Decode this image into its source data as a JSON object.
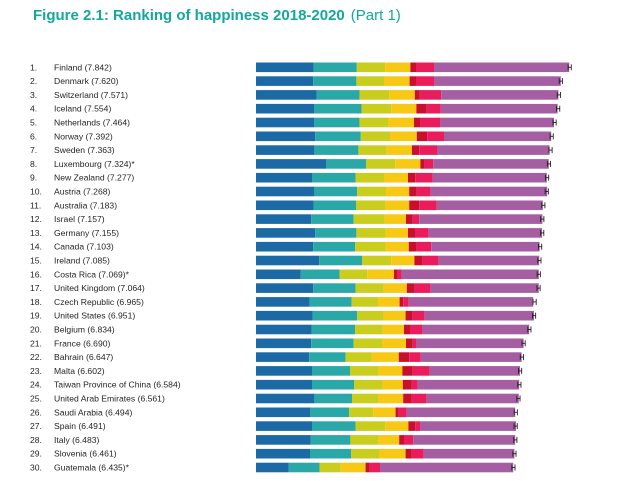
{
  "figure": {
    "title": "Figure 2.1: Ranking of happiness 2018-2020",
    "part": "(Part 1)"
  },
  "colors": {
    "title": "#13a89e",
    "segments": [
      "#1b6aa5",
      "#2aa8a8",
      "#c9cd1e",
      "#f8c914",
      "#c8102e",
      "#ea1c5c",
      "#a55ea2"
    ],
    "whisker": "#231f20"
  },
  "chart_data": {
    "type": "bar",
    "orientation": "horizontal",
    "stacked": true,
    "title": "Figure 2.1: Ranking of happiness 2018-2020",
    "subtitle": "(Part 1)",
    "ranks": [
      "1.",
      "2.",
      "3.",
      "4.",
      "5.",
      "6.",
      "7.",
      "8.",
      "9.",
      "10.",
      "11.",
      "12.",
      "13.",
      "14.",
      "15.",
      "16.",
      "17.",
      "18.",
      "19.",
      "20.",
      "21.",
      "22.",
      "23.",
      "24.",
      "25.",
      "26.",
      "27.",
      "28.",
      "29.",
      "30."
    ],
    "categories": [
      "Finland (7.842)",
      "Denmark (7.620)",
      "Switzerland (7.571)",
      "Iceland (7.554)",
      "Netherlands (7.464)",
      "Norway (7.392)",
      "Sweden (7.363)",
      "Luxembourg (7.324)*",
      "New Zealand (7.277)",
      "Austria (7.268)",
      "Australia (7.183)",
      "Israel (7.157)",
      "Germany (7.155)",
      "Canada (7.103)",
      "Ireland (7.085)",
      "Costa Rica (7.069)*",
      "United Kingdom (7.064)",
      "Czech Republic (6.965)",
      "United States (6.951)",
      "Belgium (6.834)",
      "France (6.690)",
      "Bahrain (6.647)",
      "Malta (6.602)",
      "Taiwan Province of China (6.584)",
      "United Arab Emirates (6.561)",
      "Saudi Arabia (6.494)",
      "Spain (6.491)",
      "Italy (6.483)",
      "Slovenia (6.461)",
      "Guatemala (6.435)*"
    ],
    "totals": [
      7.842,
      7.62,
      7.571,
      7.554,
      7.464,
      7.392,
      7.363,
      7.324,
      7.277,
      7.268,
      7.183,
      7.157,
      7.155,
      7.103,
      7.085,
      7.069,
      7.064,
      6.965,
      6.951,
      6.834,
      6.69,
      6.647,
      6.602,
      6.584,
      6.561,
      6.494,
      6.491,
      6.483,
      6.461,
      6.435
    ],
    "segments": [
      [
        1.44,
        1.08,
        0.71,
        0.63,
        0.14,
        0.45,
        3.38
      ],
      [
        1.43,
        1.08,
        0.69,
        0.64,
        0.16,
        0.46,
        3.16
      ],
      [
        1.52,
        1.07,
        0.74,
        0.64,
        0.12,
        0.54,
        2.93
      ],
      [
        1.45,
        1.19,
        0.74,
        0.63,
        0.26,
        0.35,
        2.92
      ],
      [
        1.45,
        1.14,
        0.71,
        0.65,
        0.17,
        0.49,
        2.84
      ],
      [
        1.48,
        1.14,
        0.73,
        0.67,
        0.26,
        0.42,
        2.68
      ],
      [
        1.46,
        1.1,
        0.71,
        0.63,
        0.18,
        0.46,
        2.8
      ],
      [
        1.75,
        1.0,
        0.73,
        0.63,
        0.1,
        0.22,
        2.89
      ],
      [
        1.4,
        1.09,
        0.72,
        0.59,
        0.18,
        0.44,
        2.85
      ],
      [
        1.46,
        1.07,
        0.72,
        0.58,
        0.19,
        0.35,
        2.91
      ],
      [
        1.44,
        1.06,
        0.74,
        0.59,
        0.25,
        0.44,
        2.65
      ],
      [
        1.38,
        1.06,
        0.78,
        0.53,
        0.17,
        0.16,
        3.08
      ],
      [
        1.48,
        1.03,
        0.73,
        0.56,
        0.19,
        0.32,
        2.84
      ],
      [
        1.43,
        1.05,
        0.76,
        0.58,
        0.2,
        0.36,
        2.71
      ],
      [
        1.58,
        1.07,
        0.73,
        0.58,
        0.2,
        0.4,
        2.52
      ],
      [
        1.12,
        0.97,
        0.69,
        0.67,
        0.09,
        0.1,
        3.43
      ],
      [
        1.43,
        1.06,
        0.7,
        0.58,
        0.18,
        0.41,
        2.71
      ],
      [
        1.34,
        1.05,
        0.66,
        0.54,
        0.09,
        0.14,
        3.11
      ],
      [
        1.42,
        1.11,
        0.66,
        0.55,
        0.17,
        0.3,
        2.74
      ],
      [
        1.39,
        1.09,
        0.69,
        0.53,
        0.15,
        0.31,
        2.67
      ],
      [
        1.38,
        1.06,
        0.72,
        0.59,
        0.16,
        0.1,
        2.68
      ],
      [
        1.33,
        0.91,
        0.65,
        0.68,
        0.26,
        0.29,
        2.52
      ],
      [
        1.4,
        0.95,
        0.72,
        0.59,
        0.25,
        0.43,
        2.26
      ],
      [
        1.4,
        1.05,
        0.71,
        0.51,
        0.22,
        0.15,
        2.54
      ],
      [
        1.46,
        0.94,
        0.66,
        0.62,
        0.21,
        0.37,
        2.31
      ],
      [
        1.35,
        0.98,
        0.6,
        0.56,
        0.07,
        0.21,
        2.71
      ],
      [
        1.4,
        1.09,
        0.74,
        0.58,
        0.17,
        0.13,
        2.39
      ],
      [
        1.37,
        0.99,
        0.7,
        0.52,
        0.12,
        0.23,
        2.55
      ],
      [
        1.35,
        1.03,
        0.71,
        0.65,
        0.15,
        0.3,
        2.27
      ],
      [
        0.82,
        0.77,
        0.53,
        0.62,
        0.1,
        0.26,
        3.33
      ]
    ],
    "ci_half_width": 0.04,
    "xlim": [
      0,
      8.0
    ],
    "legend": "none",
    "grid": false
  }
}
